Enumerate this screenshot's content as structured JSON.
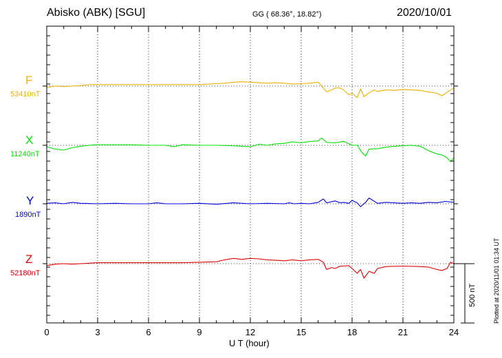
{
  "header": {
    "station": "Abisko (ABK)  [SGU]",
    "coords": "GG ( 68.36°,  18.82°)",
    "date": "2020/10/01"
  },
  "plotted_note": "Plotted at 2020/11/01 01:34 UT",
  "scale_label": "500 nT",
  "colors": {
    "F": "#f0b000",
    "X": "#00e000",
    "Y": "#0000dd",
    "Z": "#e00000"
  },
  "chart_data": {
    "type": "line",
    "xlabel": "U T (hour)",
    "xlim": [
      0,
      24
    ],
    "xticks": [
      0,
      3,
      6,
      9,
      12,
      15,
      18,
      21,
      24
    ],
    "grid": true,
    "y_units": "nT (offset from baseline; scale bar 500 nT)",
    "series": [
      {
        "name": "F",
        "baseline": "53410nT",
        "x": [
          0,
          0.5,
          1,
          1.5,
          2,
          2.5,
          3,
          4,
          5,
          6,
          7,
          8,
          9,
          10,
          10.5,
          11,
          11.5,
          12,
          12.5,
          13,
          13.5,
          14,
          14.5,
          15,
          15.5,
          16,
          16.3,
          16.5,
          16.8,
          17,
          17.3,
          17.5,
          17.8,
          18,
          18.3,
          18.5,
          18.7,
          19,
          19.3,
          19.5,
          20,
          20.5,
          21,
          21.5,
          22,
          22.5,
          23,
          23.3,
          23.6,
          24
        ],
        "y": [
          -15,
          0,
          -5,
          0,
          5,
          15,
          15,
          15,
          15,
          15,
          15,
          15,
          15,
          25,
          30,
          40,
          45,
          40,
          35,
          30,
          35,
          30,
          20,
          25,
          30,
          40,
          -20,
          -60,
          -40,
          -20,
          -20,
          -40,
          -90,
          -75,
          -120,
          -30,
          -110,
          -70,
          -40,
          -55,
          -40,
          -45,
          -35,
          -40,
          -45,
          -60,
          -75,
          -100,
          -65,
          -20
        ]
      },
      {
        "name": "X",
        "baseline": "11240nT",
        "x": [
          0,
          0.5,
          1,
          1.5,
          2,
          2.5,
          3,
          4,
          5,
          6,
          7,
          7.5,
          8,
          9,
          10,
          11,
          12,
          12.5,
          13,
          13.5,
          14,
          14.5,
          15,
          15.5,
          16,
          16.2,
          16.5,
          17,
          17.5,
          18,
          18.3,
          18.6,
          18.8,
          19,
          19.5,
          20,
          20.5,
          21,
          21.5,
          22,
          22.5,
          23,
          23.3,
          23.6,
          23.8,
          24
        ],
        "y": [
          -15,
          -40,
          -50,
          -25,
          -10,
          0,
          5,
          5,
          5,
          0,
          0,
          -15,
          5,
          0,
          0,
          -5,
          -15,
          10,
          0,
          15,
          20,
          35,
          25,
          40,
          45,
          75,
          30,
          25,
          40,
          0,
          0,
          -80,
          -110,
          -40,
          -35,
          -20,
          -10,
          -5,
          0,
          -10,
          -55,
          -90,
          -100,
          -130,
          -170,
          -130
        ]
      },
      {
        "name": "Y",
        "baseline": "1890nT",
        "x": [
          0,
          0.5,
          1,
          1.5,
          2,
          3,
          4,
          5,
          6,
          6.5,
          7,
          8,
          9,
          10,
          11,
          12,
          13,
          14,
          14.3,
          14.6,
          15,
          15.5,
          16,
          16.3,
          16.5,
          17,
          17.3,
          17.5,
          17.8,
          18,
          18.3,
          18.5,
          18.8,
          19,
          19.5,
          20,
          21,
          21.5,
          22,
          22.5,
          23,
          23.5,
          24
        ],
        "y": [
          5,
          10,
          0,
          15,
          5,
          0,
          5,
          0,
          0,
          10,
          0,
          0,
          5,
          -5,
          10,
          0,
          5,
          0,
          10,
          0,
          5,
          0,
          15,
          50,
          10,
          30,
          10,
          15,
          5,
          35,
          10,
          -30,
          15,
          60,
          5,
          15,
          5,
          10,
          5,
          15,
          10,
          25,
          15
        ]
      },
      {
        "name": "Z",
        "baseline": "52180nT",
        "x": [
          0,
          0.5,
          1,
          1.5,
          2,
          3,
          4,
          5,
          6,
          7,
          8,
          9,
          10,
          10.5,
          11,
          11.5,
          12,
          12.5,
          13,
          13.5,
          14,
          14.5,
          15,
          15.5,
          16,
          16.3,
          16.5,
          16.8,
          17,
          17.3,
          17.5,
          17.8,
          18,
          18.3,
          18.5,
          18.7,
          19,
          19.3,
          19.5,
          20,
          21,
          22,
          22.5,
          23,
          23.3,
          23.6,
          23.8,
          24
        ],
        "y": [
          -20,
          -5,
          0,
          -5,
          0,
          10,
          10,
          10,
          10,
          10,
          10,
          15,
          20,
          40,
          55,
          45,
          55,
          50,
          40,
          35,
          30,
          40,
          30,
          40,
          45,
          15,
          -60,
          -40,
          -50,
          -25,
          -25,
          -20,
          -50,
          -100,
          -60,
          -150,
          -80,
          -100,
          -50,
          -30,
          -25,
          -30,
          -35,
          -60,
          -70,
          -50,
          15,
          0
        ]
      }
    ]
  }
}
